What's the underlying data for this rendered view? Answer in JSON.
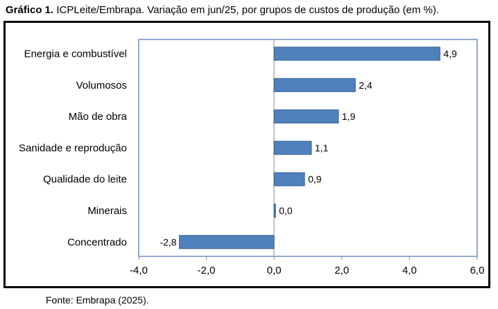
{
  "caption": {
    "label": "Gráfico 1.",
    "text": "ICPLeite/Embrapa. Variação em jun/25, por grupos de custos de produção (em %)."
  },
  "source": "Fonte: Embrapa (2025).",
  "colors": {
    "bar_fill": "#4f81bd",
    "bar_stroke": "#2f5c8f",
    "plot_border": "#6d8fc4",
    "frame_border": "#000000"
  },
  "chart_data": {
    "type": "bar",
    "orientation": "horizontal",
    "categories": [
      "Energia e combustível",
      "Volumosos",
      "Mão de obra",
      "Sanidade e reprodução",
      "Qualidade do leite",
      "Minerais",
      "Concentrado"
    ],
    "values": [
      4.9,
      2.4,
      1.9,
      1.1,
      0.9,
      0.0,
      -2.8
    ],
    "value_labels": [
      "4,9",
      "2,4",
      "1,9",
      "1,1",
      "0,9",
      "0,0",
      "-2,8"
    ],
    "xlim": [
      -4.0,
      6.0
    ],
    "x_ticks": [
      -4.0,
      -2.0,
      0.0,
      2.0,
      4.0,
      6.0
    ],
    "x_tick_labels": [
      "-4,0",
      "-2,0",
      "0,0",
      "2,0",
      "4,0",
      "6,0"
    ],
    "grid": false,
    "legend": "none"
  }
}
